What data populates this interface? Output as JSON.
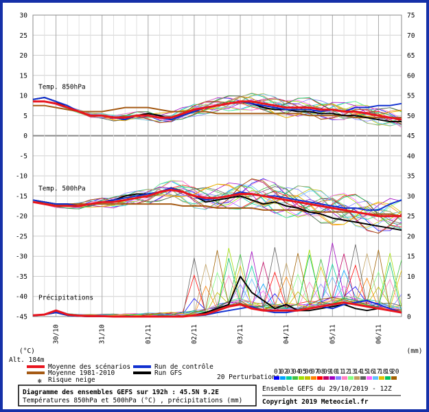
{
  "chart_data": {
    "type": "line",
    "title": "Diagramme des ensembles GEFS sur 192h : 45.5N 9.2E",
    "subtitle": "Températures 850hPa et 500hPa (°C) , précipitations (mm)",
    "left_axis": {
      "unit": "(°C)",
      "range": [
        -45,
        30
      ],
      "ticks": [
        30,
        25,
        20,
        15,
        10,
        5,
        0,
        -5,
        -10,
        -15,
        -20,
        -25,
        -30,
        -35,
        -40,
        -45
      ]
    },
    "right_axis": {
      "unit": "(mm)",
      "range": [
        0,
        75
      ],
      "ticks": [
        75,
        70,
        65,
        60,
        55,
        50,
        45,
        40,
        35,
        30,
        25,
        20,
        15,
        10,
        5,
        0
      ]
    },
    "altitude": "Alt. 184m",
    "x_dates": [
      "30/10",
      "31/10",
      "01/11",
      "02/11",
      "03/11",
      "04/11",
      "05/11",
      "06/11"
    ],
    "panel_labels": {
      "t850": "Temp. 850hPa",
      "t500": "Temp. 500hPa",
      "precip": "Précipitations"
    },
    "x_hours": [
      0,
      6,
      12,
      18,
      24,
      30,
      36,
      42,
      48,
      54,
      60,
      66,
      72,
      78,
      84,
      90,
      96,
      102,
      108,
      114,
      120,
      126,
      132,
      138,
      144,
      150,
      156,
      162,
      168,
      174,
      180,
      186,
      192
    ],
    "series": [
      {
        "name": "Moyenne des scénarios",
        "color": "#e8141e",
        "t850": [
          8.5,
          8.5,
          8,
          7,
          6,
          5,
          5,
          4.5,
          4.5,
          5,
          5,
          4.5,
          4.5,
          5.5,
          6.5,
          7,
          7.5,
          8,
          8.5,
          8.5,
          8,
          7.5,
          7,
          7,
          7,
          6.5,
          6.5,
          6,
          6,
          5.5,
          5,
          4.5,
          4
        ],
        "t500": [
          -16.5,
          -17,
          -17.5,
          -17.5,
          -17.5,
          -17,
          -16.5,
          -16.5,
          -16,
          -15.5,
          -15,
          -14,
          -13.5,
          -14,
          -15,
          -15.5,
          -15.5,
          -15,
          -14.5,
          -14.5,
          -15,
          -15.5,
          -16,
          -16.5,
          -17,
          -17.5,
          -18,
          -18.5,
          -19,
          -19.5,
          -20,
          -20,
          -20
        ],
        "precip": [
          0.3,
          0.5,
          1.5,
          0.5,
          0.2,
          0.1,
          0.1,
          0,
          0,
          0,
          0,
          0,
          0,
          0,
          0.3,
          0.6,
          1.5,
          2.5,
          3,
          2,
          1.5,
          1.5,
          1.5,
          1.5,
          2,
          2.5,
          3,
          3.5,
          3,
          2.5,
          2,
          1.5,
          1
        ]
      },
      {
        "name": "Run de contrôle",
        "color": "#1030d0",
        "t850": [
          9,
          9.5,
          8.5,
          7.5,
          6,
          5,
          5,
          4.5,
          4,
          5,
          5,
          4.5,
          4,
          5,
          6,
          7,
          7.5,
          8,
          8.5,
          8,
          7.5,
          7,
          6.5,
          6.5,
          6.5,
          6,
          6.5,
          6,
          7,
          7,
          7.5,
          7.5,
          8
        ],
        "t500": [
          -16,
          -16.5,
          -17,
          -17,
          -17.5,
          -17,
          -16.5,
          -16,
          -15.5,
          -15,
          -14.5,
          -14,
          -13,
          -14,
          -15,
          -16,
          -15.5,
          -15,
          -14,
          -14.5,
          -15,
          -15,
          -15.5,
          -16,
          -16.5,
          -17,
          -17.5,
          -18,
          -18,
          -18.5,
          -18.5,
          -17,
          -16
        ],
        "precip": [
          0.2,
          0.5,
          1,
          0.3,
          0.1,
          0,
          0,
          0,
          0,
          0,
          0,
          0,
          0,
          0,
          0.2,
          0.4,
          1,
          1.5,
          2,
          2.5,
          1.5,
          1,
          1,
          1.5,
          2,
          2.5,
          2,
          3,
          3.5,
          4,
          3,
          2,
          1
        ]
      },
      {
        "name": "Moyenne 1981-2010",
        "color": "#a55a14",
        "t850": [
          7.5,
          7.5,
          7,
          6.5,
          6,
          6,
          6,
          6.5,
          7,
          7,
          7,
          6.5,
          6,
          6,
          6,
          6,
          5.5,
          5.5,
          5.5,
          5.5,
          5.5,
          5.5,
          5.5,
          5.5,
          5,
          5,
          5,
          5,
          4.5,
          4.5,
          4.5,
          4.5,
          4.5
        ],
        "t500": [
          -16.5,
          -16.5,
          -17,
          -17,
          -17,
          -17,
          -17,
          -17,
          -17,
          -17,
          -17,
          -17,
          -17,
          -17.5,
          -17.5,
          -17.5,
          -18,
          -18,
          -18,
          -18,
          -18.5,
          -18.5,
          -18.5,
          -18.5,
          -19,
          -19,
          -19,
          -19,
          -19,
          -19.5,
          -19.5,
          -19.5,
          -20
        ]
      },
      {
        "name": "Run GFS",
        "color": "#000000",
        "t850": [
          9,
          9.5,
          8.5,
          7,
          6,
          5,
          5,
          4.5,
          4,
          5,
          5.5,
          5,
          4,
          5,
          6,
          7,
          7.5,
          8,
          8.5,
          8,
          7,
          6.5,
          6.5,
          6,
          6,
          5.5,
          5.5,
          5,
          5,
          4.5,
          4,
          3.5,
          3.5
        ],
        "t500": [
          -16,
          -16.5,
          -17,
          -17,
          -17.5,
          -17,
          -16.5,
          -16,
          -15,
          -14.5,
          -14.5,
          -14,
          -13,
          -14,
          -15,
          -16.5,
          -16,
          -15.5,
          -15,
          -16,
          -17,
          -16.5,
          -17.5,
          -18,
          -19,
          -19.5,
          -20.5,
          -21,
          -21.5,
          -22,
          -22.5,
          -23,
          -23.5
        ],
        "precip": [
          0.2,
          0.5,
          1,
          0.3,
          0.1,
          0,
          0,
          0,
          0,
          0,
          0,
          0,
          0,
          0,
          0.3,
          1,
          2,
          3,
          10,
          6,
          4,
          2,
          3,
          1.5,
          1.5,
          2,
          2.5,
          3,
          2,
          1.5,
          2,
          1.5,
          1
        ]
      }
    ],
    "perturbation_colors": [
      "#0000ff",
      "#00a0ff",
      "#00d0a0",
      "#40c040",
      "#a0e000",
      "#c0c000",
      "#ff8000",
      "#ff0000",
      "#c00060",
      "#a000c0",
      "#8080ff",
      "#ff80c0",
      "#80ff80",
      "#c0a060",
      "#606060",
      "#ff60ff",
      "#60c0ff",
      "#e0c000",
      "#00c060",
      "#a06000"
    ],
    "legend_entries": [
      "Moyenne des scénarios",
      "Moyenne 1981-2010",
      "Risque neige",
      "Run de contrôle",
      "Run GFS"
    ],
    "perturb_label": "20 Perturbations",
    "perturb_ids": [
      "01",
      "02",
      "03",
      "04",
      "05",
      "06",
      "07",
      "08",
      "09",
      "10",
      "11",
      "12",
      "13",
      "14",
      "15",
      "16",
      "17",
      "18",
      "19",
      "20"
    ],
    "ensemble_info": "Ensemble GEFS du 29/10/2019 - 12Z",
    "copyright": "Copyright 2019 Meteociel.fr",
    "grid": true
  }
}
